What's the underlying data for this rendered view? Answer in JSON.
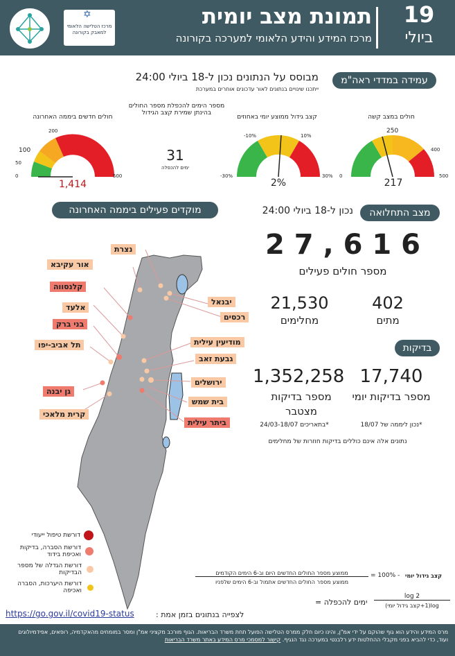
{
  "header": {
    "title": "תמונת מצב יומית",
    "subtitle": "מרכז המידע והידע הלאומי למערכה בקורונה",
    "day": "19",
    "month": "ביולי",
    "logo2_text": "מרכז הטלישה הלאומי למאבק בקורונה"
  },
  "metrics_section": {
    "pill": "עמידה במדדי ראה\"מ",
    "based_on": "מבוסס על הנתונים נכון ל-18 ביולי 24:00",
    "note": "ייתכנו שינויים בנתונים לאור עדכונים אוחרים במערכת",
    "gauges": [
      {
        "title": "חולים חדשים ביממה האחרונה",
        "value": "1,414",
        "ticks": [
          "0",
          "50",
          "100",
          "200",
          "500"
        ]
      },
      {
        "title": "מספר הימים להכפלת מספר החולים בהינתן שמירת קצב הגידול",
        "value": "31",
        "sub": "ימים להכפלה"
      },
      {
        "title": "קצב גידול ממוצע יומי באחוזים",
        "value": "2%",
        "ticks": [
          "-30%",
          "-10%",
          "10%",
          "30%"
        ]
      },
      {
        "title": "חולים במצב קשה",
        "value": "217",
        "ticks": [
          "0",
          "250",
          "400",
          "500"
        ]
      }
    ]
  },
  "outbreak": {
    "pill_right": "מצב התחלואה",
    "pill_left": "מוקדים פעילים ביממה האחרונה",
    "as_of": "נכון ל-18 ביולי 24:00",
    "active": "2 7 , 6 1 6",
    "active_label": "מספר חולים פעילים",
    "deaths": "402",
    "deaths_label": "מתים",
    "recovered": "21,530",
    "recovered_label": "מחלימים"
  },
  "tests": {
    "pill": "בדיקות",
    "daily": "17,740",
    "daily_label": "מספר בדיקות יומי",
    "daily_note": "*נכון ליממה של 18/07",
    "total": "1,352,258",
    "total_label": "מספר בדיקות מצטבר",
    "total_note": "*בתאריכים 24/03-18/07",
    "footnote": "נתונים אלה אינם כוללים בדיקות חוזרות של מחלימים"
  },
  "map_labels": [
    {
      "name": "נצרת",
      "kind": "o"
    },
    {
      "name": "אור עקיבא",
      "kind": "o"
    },
    {
      "name": "קלנסווה",
      "kind": "r"
    },
    {
      "name": "אלעד",
      "kind": "o"
    },
    {
      "name": "בני ברק",
      "kind": "r"
    },
    {
      "name": "תל אביב-יפו",
      "kind": "o"
    },
    {
      "name": "גן יבנה",
      "kind": "r"
    },
    {
      "name": "קרית מלאכי",
      "kind": "o"
    },
    {
      "name": "יבנאל",
      "kind": "o"
    },
    {
      "name": "רכסים",
      "kind": "o"
    },
    {
      "name": "מודיעין עילית",
      "kind": "o"
    },
    {
      "name": "גבעת זאב",
      "kind": "o"
    },
    {
      "name": "ירושלים",
      "kind": "o"
    },
    {
      "name": "בית שמש",
      "kind": "o"
    },
    {
      "name": "ביתר עילית",
      "kind": "r"
    }
  ],
  "legend": [
    {
      "text": "דורשת טיפול ייעודי",
      "color": "#c0151a"
    },
    {
      "text": "דורשת הסברה, בדיקות ואכיפת בידוד",
      "color": "#ef7b6f"
    },
    {
      "text": "דורשת הגדלה של מספר הבדיקות",
      "color": "#f9c9a5"
    },
    {
      "text": "דורשת היערכות, הסברה ואכיפה",
      "color": "#f2c318"
    }
  ],
  "formula": {
    "growth_label": "קצב גידול יומי",
    "growth_eq": "= 100% -",
    "growth_num": "ממוצע מספר החולים החדשים היום וב-6 הימים הקודמים",
    "growth_den": "ממוצע מספר החולים החדשים אתמול וב-6 הימים שלפניו",
    "doubling_label": "ימים להכפלה =",
    "doubling_num": "log 2",
    "doubling_den": "log(1+קצב גידול יומי)"
  },
  "link": {
    "label": "לצפייה בנתונים בזמן אמת :",
    "url": "https://go.gov.il/covid19-status"
  },
  "footer": {
    "text": "מרס המידע והידע הוא גוף שהוקם על ידי אמ\"ן, והינו כיום חלק ממרס הטלישה הפועל תחת משרד הבריאות. הגוף מורכב מקציני אמ\"ן ומסר במומחים מהאקדמיה, רופאים, אפידמיולוגים ועוד, כדי להביא בפני מקבלי ההחלטות ידע רלבנטי במערכה נגד הנגיף.",
    "link": "קישור למסמכי מרס המידע באתר משרד הבריאות"
  }
}
